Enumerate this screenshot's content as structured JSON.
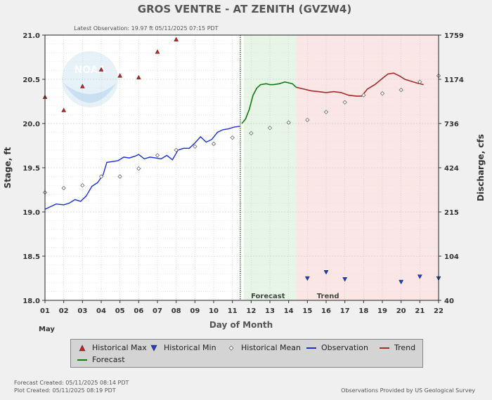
{
  "chart_data": {
    "type": "line",
    "title": "GROS VENTRE - AT ZENITH  (GVZW4)",
    "subtitle": "Latest Observation: 19.97 ft 05/11/2025 07:15 PDT",
    "xlabel": "Day of Month",
    "x_month_label": "May",
    "ylabel_left": "Stage, ft",
    "ylabel_right": "Discharge, cfs",
    "xlim": [
      1,
      22
    ],
    "ylim": [
      18.0,
      21.0
    ],
    "x_ticks": [
      "01",
      "02",
      "03",
      "04",
      "05",
      "06",
      "07",
      "08",
      "09",
      "10",
      "11",
      "12",
      "13",
      "14",
      "15",
      "16",
      "17",
      "18",
      "19",
      "20",
      "21",
      "22"
    ],
    "y_ticks_left": [
      "18.0",
      "18.5",
      "19.0",
      "19.5",
      "20.0",
      "20.5",
      "21.0"
    ],
    "y_ticks_right": [
      {
        "label": "40",
        "stage": 18.0
      },
      {
        "label": "104",
        "stage": 18.5
      },
      {
        "label": "215",
        "stage": 19.0
      },
      {
        "label": "424",
        "stage": 19.5
      },
      {
        "label": "736",
        "stage": 20.0
      },
      {
        "label": "1174",
        "stage": 20.5
      },
      {
        "label": "1759",
        "stage": 21.0
      }
    ],
    "grid": true,
    "regions": [
      {
        "name": "Forecast",
        "x": [
          11.6,
          14.4
        ],
        "color": "#e6f5e6"
      },
      {
        "name": "Trend",
        "x": [
          14.4,
          22.0
        ],
        "color": "#fbe6e6"
      }
    ],
    "current_time_x": 11.42,
    "historical_max": {
      "x": [
        1,
        2,
        3,
        4,
        5,
        6,
        7,
        8
      ],
      "y": [
        20.3,
        20.15,
        20.42,
        20.61,
        20.54,
        20.52,
        20.81,
        20.95
      ]
    },
    "historical_min": {
      "x": [
        15,
        16,
        17,
        20,
        21,
        22
      ],
      "y": [
        18.25,
        18.32,
        18.24,
        18.21,
        18.27,
        18.25
      ]
    },
    "historical_mean": {
      "x": [
        1,
        2,
        3,
        4,
        5,
        6,
        7,
        8,
        9,
        10,
        11,
        12,
        13,
        14,
        15,
        16,
        17,
        18,
        19,
        20,
        21,
        22
      ],
      "y": [
        19.22,
        19.27,
        19.3,
        19.4,
        19.4,
        19.49,
        19.64,
        19.7,
        19.74,
        19.77,
        19.84,
        19.89,
        19.95,
        20.01,
        20.04,
        20.13,
        20.24,
        20.32,
        20.34,
        20.38,
        20.47,
        20.54
      ]
    },
    "observation": {
      "x": [
        1.0,
        1.3,
        1.6,
        2.0,
        2.3,
        2.6,
        2.9,
        3.2,
        3.5,
        3.8,
        4.1,
        4.3,
        4.6,
        4.9,
        5.2,
        5.5,
        5.8,
        6.0,
        6.3,
        6.6,
        6.9,
        7.2,
        7.5,
        7.8,
        8.1,
        8.4,
        8.7,
        9.0,
        9.3,
        9.6,
        9.9,
        10.2,
        10.5,
        10.8,
        11.1,
        11.42
      ],
      "y": [
        19.03,
        19.06,
        19.09,
        19.08,
        19.1,
        19.14,
        19.12,
        19.18,
        19.29,
        19.33,
        19.42,
        19.56,
        19.57,
        19.58,
        19.62,
        19.61,
        19.63,
        19.65,
        19.6,
        19.62,
        19.61,
        19.6,
        19.64,
        19.59,
        19.7,
        19.72,
        19.72,
        19.78,
        19.85,
        19.79,
        19.82,
        19.9,
        19.93,
        19.94,
        19.96,
        19.97
      ]
    },
    "forecast": {
      "x": [
        11.5,
        11.7,
        11.9,
        12.1,
        12.3,
        12.5,
        12.8,
        13.0,
        13.2,
        13.5,
        13.8,
        14.0,
        14.2,
        14.4
      ],
      "y": [
        20.0,
        20.05,
        20.16,
        20.32,
        20.4,
        20.44,
        20.45,
        20.44,
        20.44,
        20.45,
        20.47,
        20.46,
        20.45,
        20.41
      ]
    },
    "trend": {
      "x": [
        14.4,
        14.8,
        15.2,
        15.6,
        16.0,
        16.4,
        16.8,
        17.2,
        17.6,
        17.9,
        18.2,
        18.6,
        19.0,
        19.3,
        19.6,
        19.9,
        20.2,
        20.5,
        20.8,
        21.2
      ],
      "y": [
        20.41,
        20.39,
        20.37,
        20.36,
        20.35,
        20.36,
        20.35,
        20.32,
        20.31,
        20.31,
        20.39,
        20.44,
        20.51,
        20.56,
        20.57,
        20.54,
        20.5,
        20.48,
        20.46,
        20.44
      ]
    },
    "legend": [
      {
        "label": "Historical Max",
        "symbol": "tri-up",
        "color": "#c8211e"
      },
      {
        "label": "Historical Min",
        "symbol": "tri-down",
        "color": "#1b3dd6"
      },
      {
        "label": "Historical Mean",
        "symbol": "diamond",
        "color": "#777777"
      },
      {
        "label": "Observation",
        "symbol": "line",
        "color": "#1b2fd8"
      },
      {
        "label": "Trend",
        "symbol": "line",
        "color": "#a52a2a"
      },
      {
        "label": "Forecast",
        "symbol": "line",
        "color": "#137a13"
      }
    ],
    "colors": {
      "obs": "#1b2fd8",
      "forecast": "#137a13",
      "trend": "#a52a2a",
      "max": "#c8211e",
      "min": "#1b3dd6",
      "mean": "#777777",
      "plot_bg": "#ffffff",
      "page_bg": "#f0f0f0"
    },
    "watermark": "NOAA"
  },
  "footer": {
    "forecast_created": "Forecast Created: 05/11/2025 08:14 PDT",
    "plot_created": "Plot Created: 05/11/2025 08:19 PDT",
    "credit": "Observations Provided by US Geological Survey"
  }
}
